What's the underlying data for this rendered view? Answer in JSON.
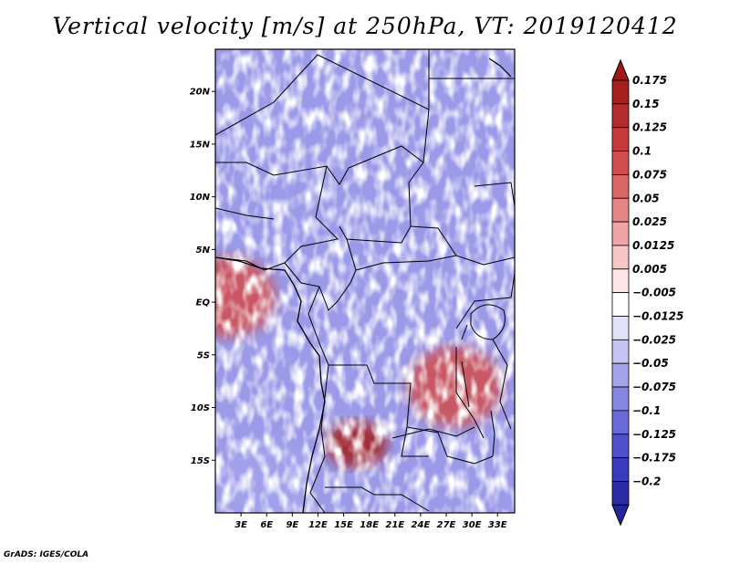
{
  "chart_data": {
    "type": "heatmap",
    "title": "Vertical velocity [m/s] at 250hPa, VT: 2019120412",
    "xlabel": "",
    "ylabel": "",
    "xlim": [
      0,
      35
    ],
    "ylim": [
      -20,
      24
    ],
    "x_ticks": [
      "3E",
      "6E",
      "9E",
      "12E",
      "15E",
      "18E",
      "21E",
      "24E",
      "27E",
      "30E",
      "33E"
    ],
    "x_tick_values": [
      3,
      6,
      9,
      12,
      15,
      18,
      21,
      24,
      27,
      30,
      33
    ],
    "y_ticks": [
      "20N",
      "15N",
      "10N",
      "5N",
      "EQ",
      "5S",
      "10S",
      "15S"
    ],
    "y_tick_values": [
      20,
      15,
      10,
      5,
      0,
      -5,
      -10,
      -15
    ],
    "colorbar": {
      "levels": [
        {
          "label": "0.175",
          "color": "#a51f1f"
        },
        {
          "label": "0.15",
          "color": "#b52a2a"
        },
        {
          "label": "0.125",
          "color": "#c53a3a"
        },
        {
          "label": "0.1",
          "color": "#d24e4e"
        },
        {
          "label": "0.075",
          "color": "#dc6767"
        },
        {
          "label": "0.05",
          "color": "#e68585"
        },
        {
          "label": "0.025",
          "color": "#efa5a5"
        },
        {
          "label": "0.0125",
          "color": "#f6c7c7"
        },
        {
          "label": "0.005",
          "color": "#fce6e6"
        },
        {
          "label": "−0.005",
          "color": "#ffffff"
        },
        {
          "label": "−0.0125",
          "color": "#e2e2fb"
        },
        {
          "label": "−0.025",
          "color": "#c4c4f4"
        },
        {
          "label": "−0.05",
          "color": "#a3a3ec"
        },
        {
          "label": "−0.075",
          "color": "#8585e2"
        },
        {
          "label": "−0.1",
          "color": "#6969d8"
        },
        {
          "label": "−0.125",
          "color": "#5050cc"
        },
        {
          "label": "−0.175",
          "color": "#3a3abd"
        },
        {
          "label": "−0.2",
          "color": "#2a2aa6"
        }
      ],
      "top_color": "#a01818",
      "bottom_color": "#24249b"
    },
    "features": [
      {
        "name": "positive-maximum",
        "lon": 16.5,
        "lat": -13.5,
        "value": 0.175
      },
      {
        "name": "positive-region",
        "lon": 1.5,
        "lat": 0.5,
        "value": 0.1
      },
      {
        "name": "positive-region",
        "lon": 28,
        "lat": -8,
        "value": 0.1
      },
      {
        "name": "negative-region",
        "lon": 6,
        "lat": -17,
        "value": -0.05
      }
    ]
  },
  "credit": "GrADS: IGES/COLA"
}
